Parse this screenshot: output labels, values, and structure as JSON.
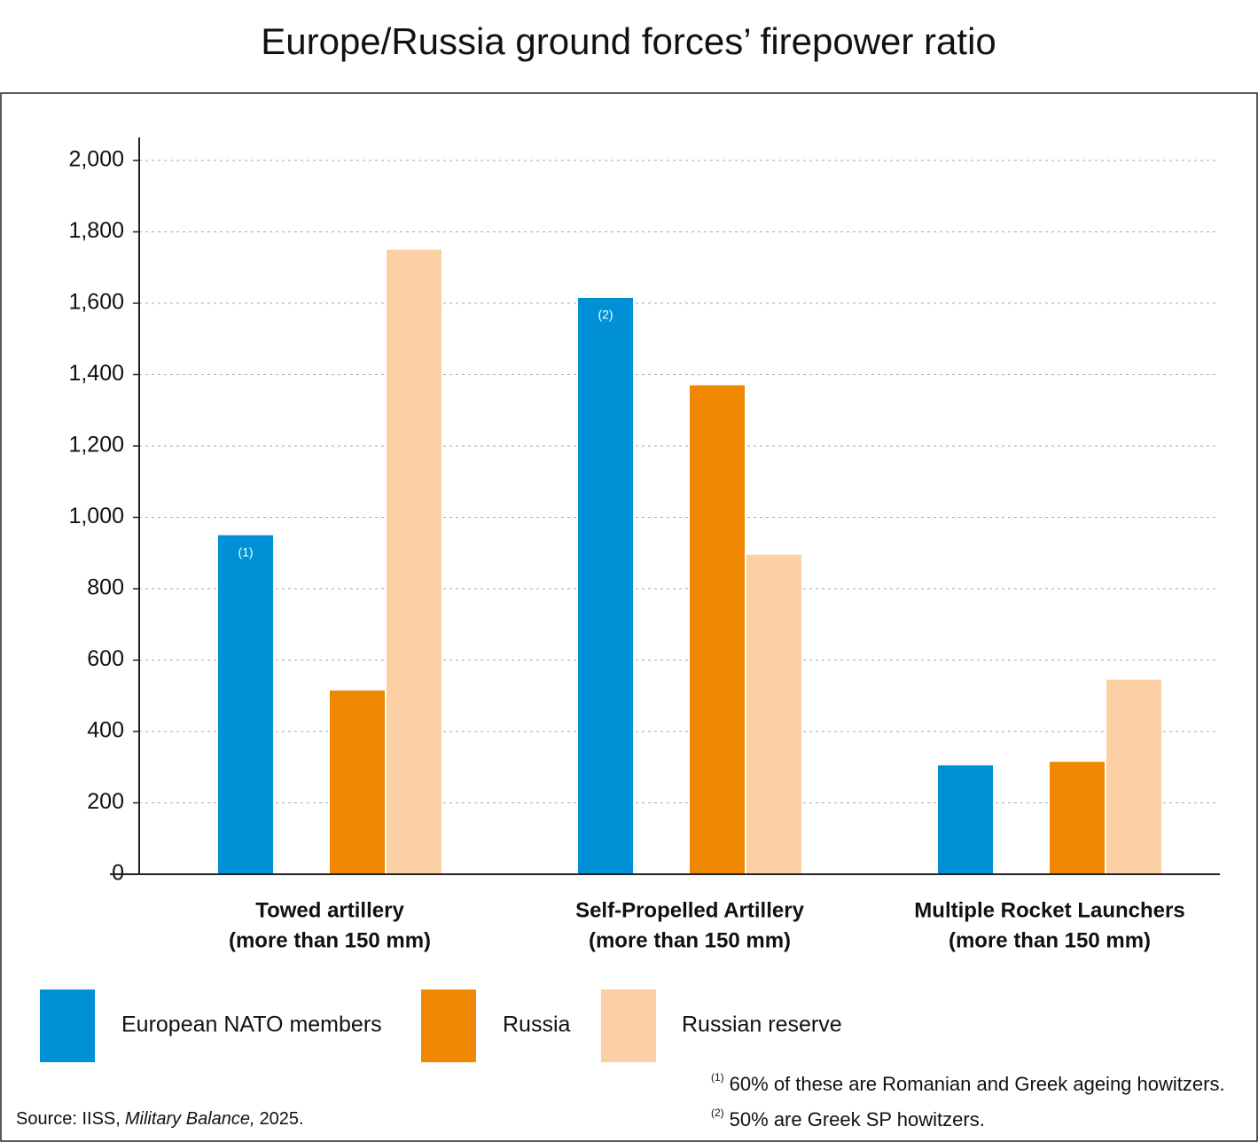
{
  "chart_data": {
    "type": "bar",
    "title": "Europe/Russia ground forces’ firepower ratio",
    "categories": [
      [
        "Towed artillery",
        "(more than 150 mm)"
      ],
      [
        "Self-Propelled Artillery",
        "(more than 150 mm)"
      ],
      [
        "Multiple Rocket Launchers",
        "(more than 150 mm)"
      ]
    ],
    "series": [
      {
        "name": "European NATO members",
        "color": "#0090d6",
        "values": [
          950,
          1615,
          305
        ],
        "notes": [
          "(1)",
          "(2)",
          null
        ]
      },
      {
        "name": "Russia",
        "color": "#f08700",
        "values": [
          515,
          1370,
          315
        ]
      },
      {
        "name": "Russian reserve",
        "color": "#fad0a4",
        "values": [
          1750,
          895,
          545
        ]
      }
    ],
    "ylim": [
      0,
      2000
    ],
    "yticks": [
      0,
      200,
      400,
      600,
      800,
      {
        "value": 1000,
        "label": "1,000"
      },
      {
        "value": 1200,
        "label": "1,200"
      },
      {
        "value": 1400,
        "label": "1,400"
      },
      {
        "value": 1600,
        "label": "1,600"
      },
      {
        "value": 1800,
        "label": "1,800"
      },
      {
        "value": 2000,
        "label": "2,000"
      }
    ],
    "grid": true,
    "legend": "bottom",
    "footnotes": [
      {
        "marker": "(1)",
        "text": "60% of these are Romanian and Greek ageing howitzers."
      },
      {
        "marker": "(2)",
        "text": "50% are Greek SP howitzers."
      }
    ],
    "source": {
      "prefix": "Source: IISS,",
      "title": "Military Balance,",
      "suffix": "2025."
    }
  }
}
